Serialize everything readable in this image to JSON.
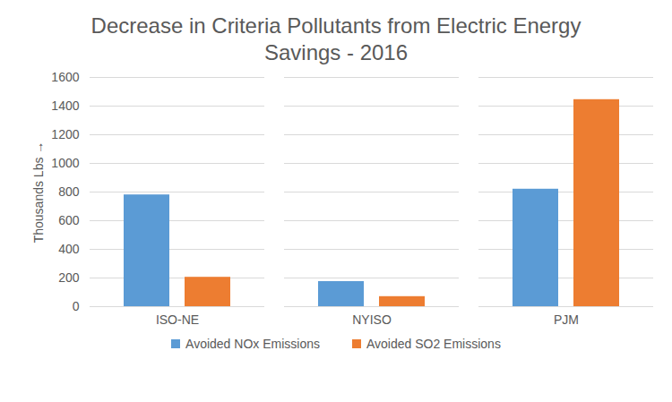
{
  "chart_data": {
    "type": "bar",
    "title": "Decrease in Criteria Pollutants from Electric Energy Savings - 2016",
    "y_label": "Thousands Lbs",
    "categories": [
      "ISO-NE",
      "NYISO",
      "PJM"
    ],
    "series": [
      {
        "name": "Avoided NOx Emissions",
        "color": "#5b9bd5",
        "values": [
          780,
          175,
          820
        ]
      },
      {
        "name": "Avoided SO2 Emissions",
        "color": "#ed7d31",
        "values": [
          205,
          70,
          1445
        ]
      }
    ],
    "ylim": [
      0,
      1600
    ],
    "yticks": [
      0,
      200,
      400,
      600,
      800,
      1000,
      1200,
      1400,
      1600
    ],
    "grid": true,
    "legend": "bottom"
  }
}
